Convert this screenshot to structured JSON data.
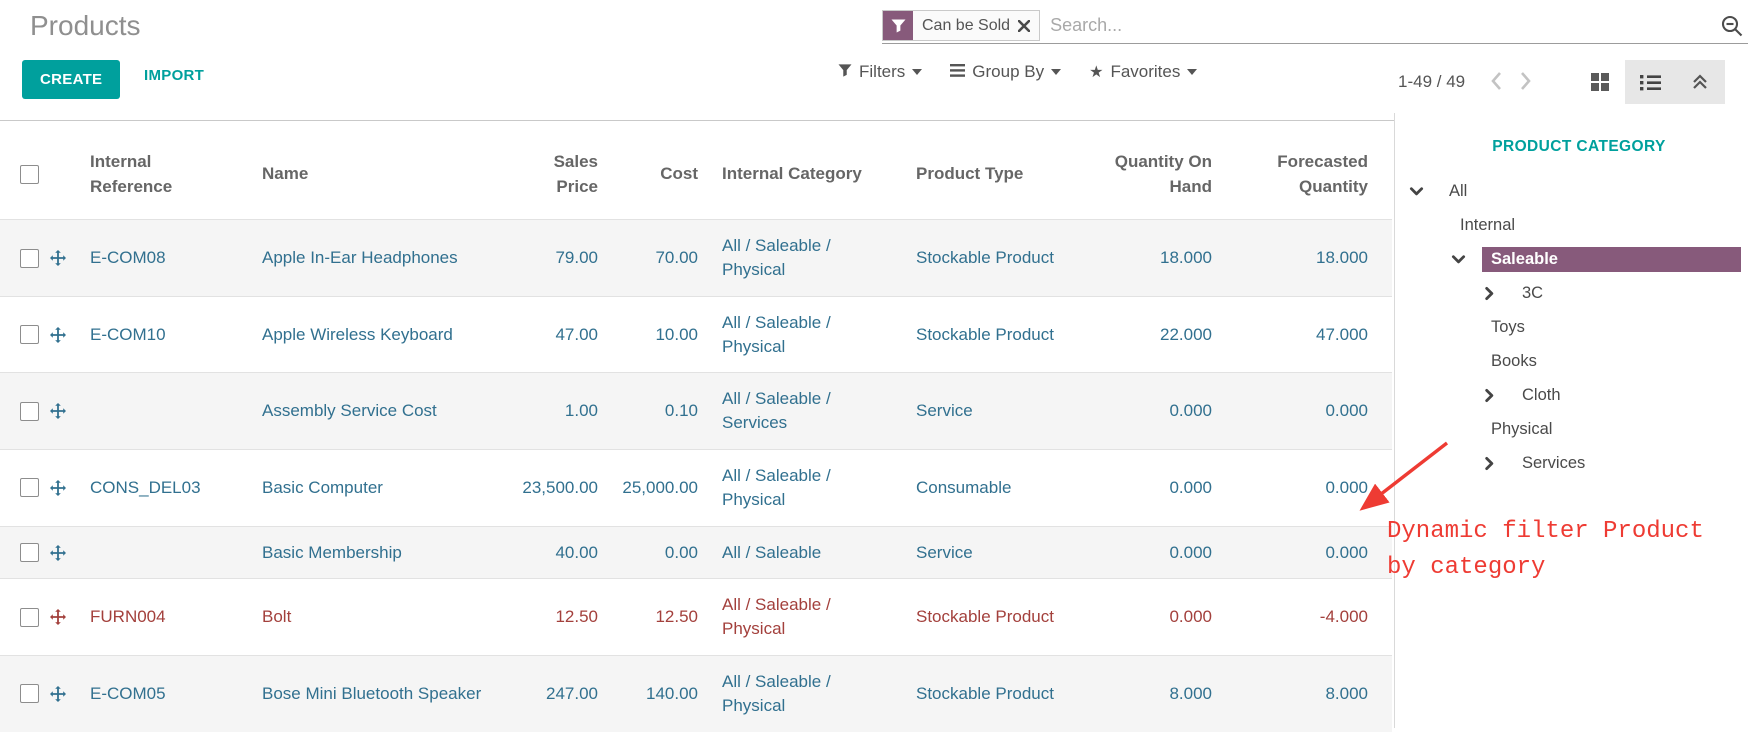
{
  "page": {
    "title": "Products"
  },
  "search": {
    "facet_label": "Can be Sold",
    "placeholder": "Search..."
  },
  "actions": {
    "create": "CREATE",
    "import": "IMPORT"
  },
  "controls": {
    "filters": "Filters",
    "group_by": "Group By",
    "favorites": "Favorites"
  },
  "pager": {
    "range": "1-49 / 49"
  },
  "table": {
    "headers": {
      "ref": "Internal Reference",
      "name": "Name",
      "price": "Sales Price",
      "cost": "Cost",
      "category": "Internal Category",
      "type": "Product Type",
      "qty": "Quantity On Hand",
      "forecast": "Forecasted Quantity"
    },
    "rows": [
      {
        "ref": "E-COM08",
        "name": "Apple In-Ear Headphones",
        "price": "79.00",
        "cost": "70.00",
        "category": "All / Saleable / Physical",
        "type": "Stockable Product",
        "qty": "18.000",
        "forecast": "18.000",
        "danger": false
      },
      {
        "ref": "E-COM10",
        "name": "Apple Wireless Keyboard",
        "price": "47.00",
        "cost": "10.00",
        "category": "All / Saleable / Physical",
        "type": "Stockable Product",
        "qty": "22.000",
        "forecast": "47.000",
        "danger": false
      },
      {
        "ref": "",
        "name": "Assembly Service Cost",
        "price": "1.00",
        "cost": "0.10",
        "category": "All / Saleable / Services",
        "type": "Service",
        "qty": "0.000",
        "forecast": "0.000",
        "danger": false
      },
      {
        "ref": "CONS_DEL03",
        "name": "Basic Computer",
        "price": "23,500.00",
        "cost": "25,000.00",
        "category": "All / Saleable / Physical",
        "type": "Consumable",
        "qty": "0.000",
        "forecast": "0.000",
        "danger": false
      },
      {
        "ref": "",
        "name": "Basic Membership",
        "price": "40.00",
        "cost": "0.00",
        "category": "All / Saleable",
        "type": "Service",
        "qty": "0.000",
        "forecast": "0.000",
        "danger": false
      },
      {
        "ref": "FURN004",
        "name": "Bolt",
        "price": "12.50",
        "cost": "12.50",
        "category": "All / Saleable / Physical",
        "type": "Stockable Product",
        "qty": "0.000",
        "forecast": "-4.000",
        "danger": true
      },
      {
        "ref": "E-COM05",
        "name": "Bose Mini Bluetooth Speaker",
        "price": "247.00",
        "cost": "140.00",
        "category": "All / Saleable / Physical",
        "type": "Stockable Product",
        "qty": "8.000",
        "forecast": "8.000",
        "danger": false
      }
    ]
  },
  "sidebar": {
    "title": "PRODUCT CATEGORY",
    "items": [
      {
        "label": "All",
        "level": 0,
        "chevron": "down",
        "selected": false
      },
      {
        "label": "Internal",
        "level": 1,
        "chevron": null,
        "selected": false
      },
      {
        "label": "Saleable",
        "level": 1,
        "chevron": "down",
        "selected": true
      },
      {
        "label": "3C",
        "level": 2,
        "chevron": "right",
        "selected": false
      },
      {
        "label": "Toys",
        "level": 2,
        "chevron": null,
        "selected": false
      },
      {
        "label": "Books",
        "level": 2,
        "chevron": null,
        "selected": false
      },
      {
        "label": "Cloth",
        "level": 2,
        "chevron": "right",
        "selected": false
      },
      {
        "label": "Physical",
        "level": 2,
        "chevron": null,
        "selected": false
      },
      {
        "label": "Services",
        "level": 2,
        "chevron": "right",
        "selected": false
      }
    ]
  },
  "annotation": {
    "line1": "Dynamic filter Product",
    "line2": "by category"
  },
  "colors": {
    "accent_teal": "#00a09d",
    "facet_purple": "#875a7b",
    "selected_purple": "#875a7b",
    "row_text": "#31708f",
    "danger_text": "#a3403c",
    "annotation_red": "#ee3b33",
    "stripe": "#f5f5f5"
  }
}
